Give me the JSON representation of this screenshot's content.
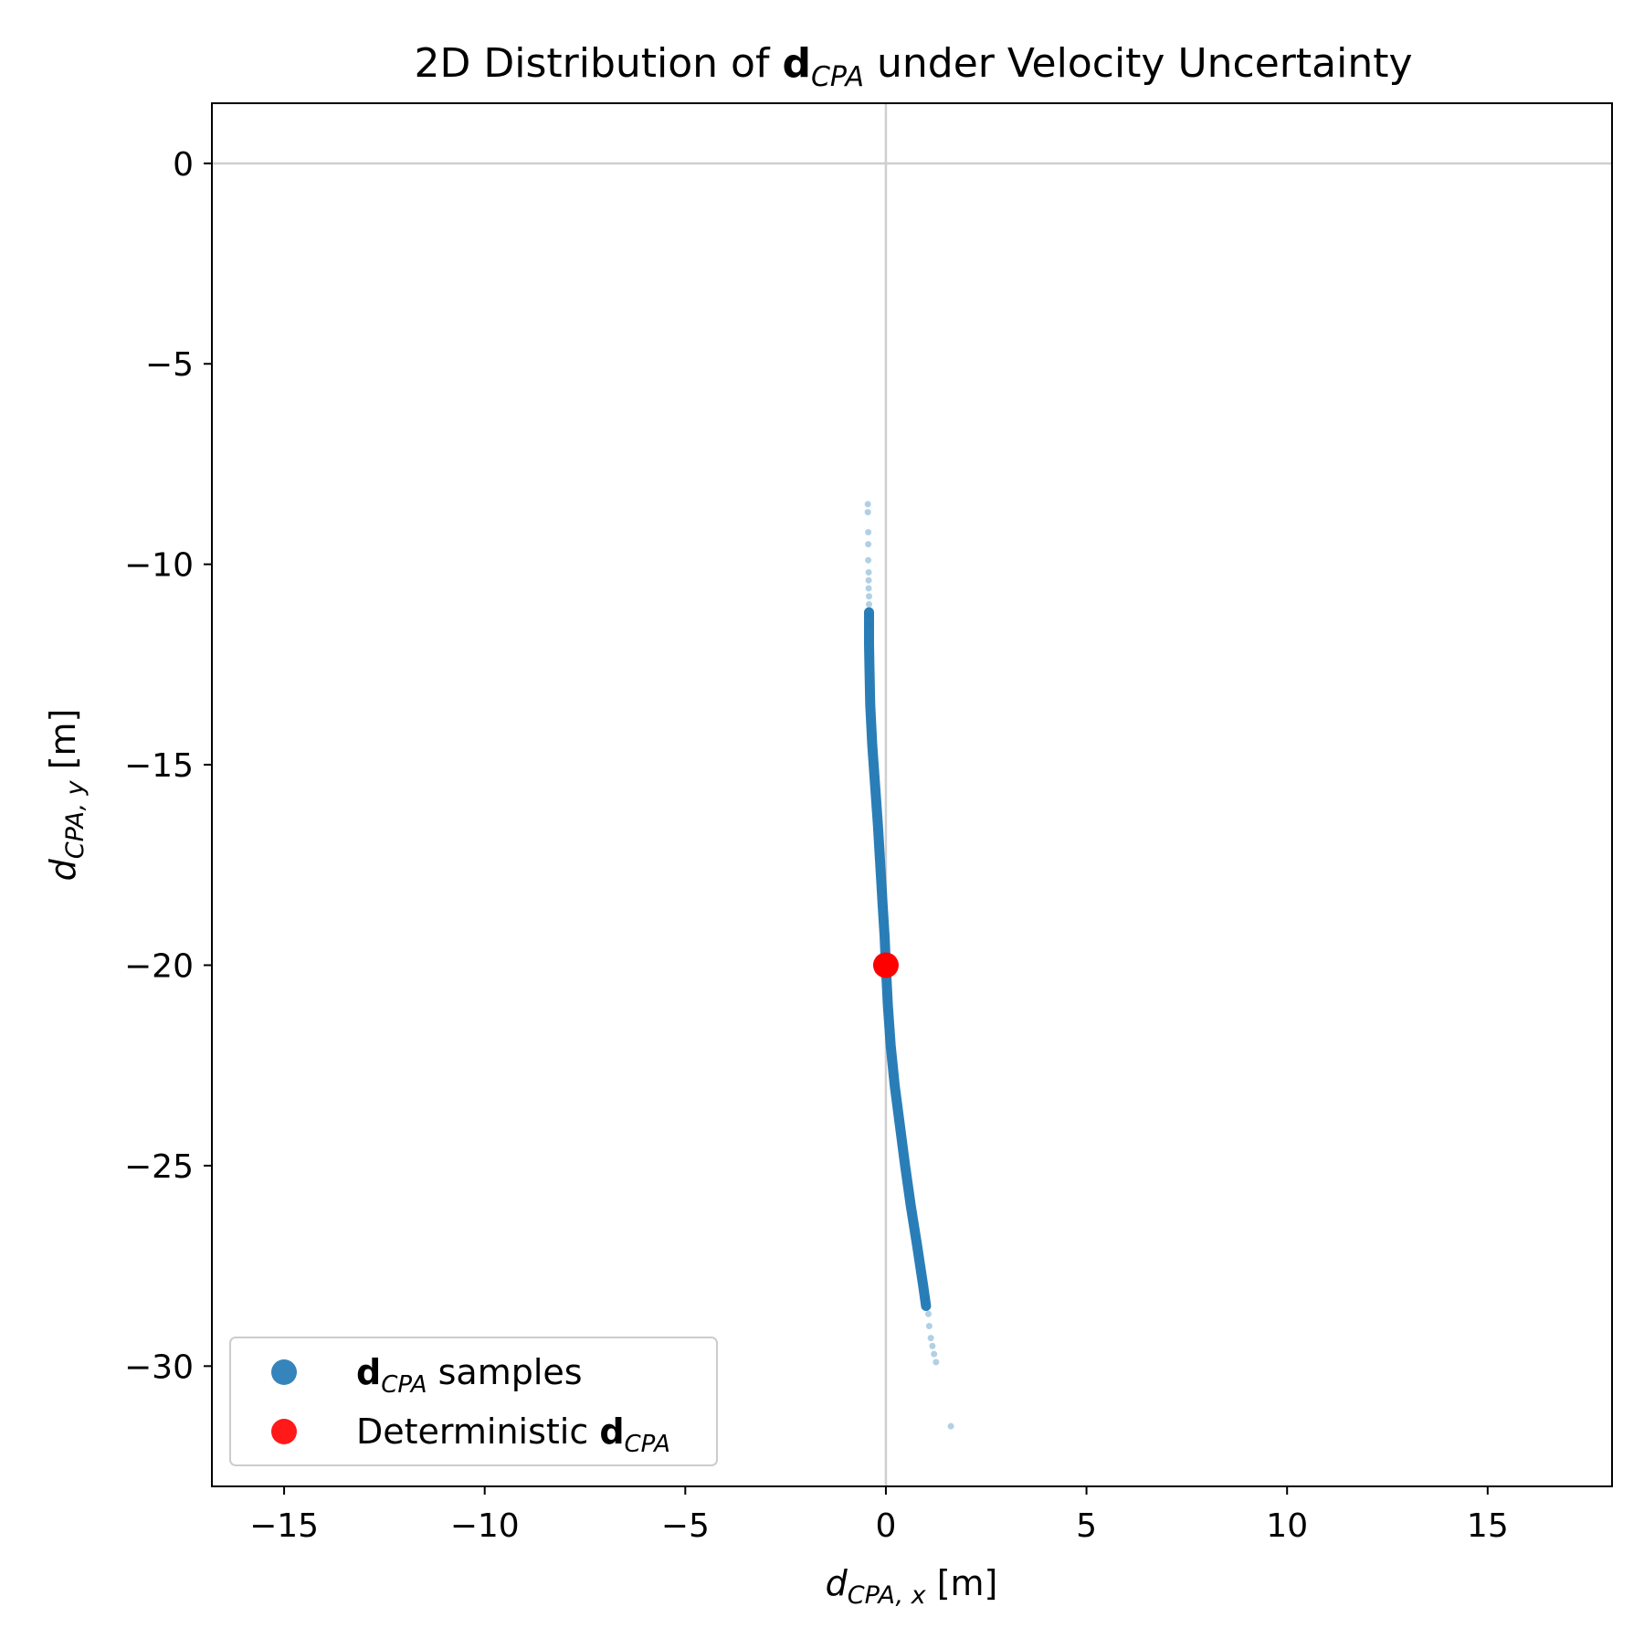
{
  "chart_data": {
    "type": "scatter",
    "title": {
      "prefix": "2D Distribution of ",
      "bold": "d",
      "sub": "CPA",
      "suffix": " under Velocity Uncertainty"
    },
    "xlabel": {
      "var": "d",
      "sub": "CPA, x",
      "unit": " [m]"
    },
    "ylabel": {
      "var": "d",
      "sub": "CPA, y",
      "unit": " [m]"
    },
    "xlim": [
      -16.8,
      18.1
    ],
    "ylim": [
      -33.0,
      1.5
    ],
    "xticks": [
      -15,
      -10,
      -5,
      0,
      5,
      10,
      15
    ],
    "yticks": [
      0,
      -5,
      -10,
      -15,
      -20,
      -25,
      -30
    ],
    "xtick_labels": [
      "−15",
      "−10",
      "−5",
      "0",
      "5",
      "10",
      "15"
    ],
    "ytick_labels": [
      "0",
      "−5",
      "−10",
      "−15",
      "−20",
      "−25",
      "−30"
    ],
    "reference_lines": {
      "x": 0,
      "y": 0
    },
    "grid": false,
    "legend_position": "lower-left",
    "series": [
      {
        "name": {
          "bold": "d",
          "sub": "CPA",
          "suffix": " samples"
        },
        "color": "#1f77b4",
        "marker": "dot",
        "curve": [
          [
            -0.42,
            -11.2
          ],
          [
            -0.42,
            -12.0
          ],
          [
            -0.41,
            -12.5
          ],
          [
            -0.39,
            -13.5
          ],
          [
            -0.34,
            -14.5
          ],
          [
            -0.27,
            -15.5
          ],
          [
            -0.2,
            -16.5
          ],
          [
            -0.14,
            -17.5
          ],
          [
            -0.08,
            -18.5
          ],
          [
            -0.03,
            -19.3
          ],
          [
            0.0,
            -20.0
          ],
          [
            0.05,
            -21.0
          ],
          [
            0.12,
            -22.0
          ],
          [
            0.22,
            -23.0
          ],
          [
            0.35,
            -24.0
          ],
          [
            0.48,
            -25.0
          ],
          [
            0.62,
            -26.0
          ],
          [
            0.78,
            -27.0
          ],
          [
            0.93,
            -28.0
          ],
          [
            1.0,
            -28.5
          ]
        ],
        "sparse_points": [
          [
            -0.45,
            -8.5
          ],
          [
            -0.45,
            -8.7
          ],
          [
            -0.44,
            -9.2
          ],
          [
            -0.44,
            -9.5
          ],
          [
            -0.44,
            -9.9
          ],
          [
            -0.43,
            -10.2
          ],
          [
            -0.43,
            -10.4
          ],
          [
            -0.43,
            -10.6
          ],
          [
            -0.42,
            -10.8
          ],
          [
            -0.42,
            -11.0
          ],
          [
            -0.42,
            -11.3
          ],
          [
            -0.42,
            -11.5
          ],
          [
            1.02,
            -28.3
          ],
          [
            1.06,
            -28.7
          ],
          [
            1.08,
            -29.0
          ],
          [
            1.12,
            -29.3
          ],
          [
            1.16,
            -29.5
          ],
          [
            1.2,
            -29.7
          ],
          [
            1.25,
            -29.9
          ],
          [
            1.62,
            -31.5
          ]
        ]
      },
      {
        "name": {
          "prefix": "Deterministic ",
          "bold": "d",
          "sub": "CPA"
        },
        "color": "#ff0000",
        "marker": "circle",
        "points": [
          [
            0.0,
            -20.0
          ]
        ]
      }
    ]
  }
}
